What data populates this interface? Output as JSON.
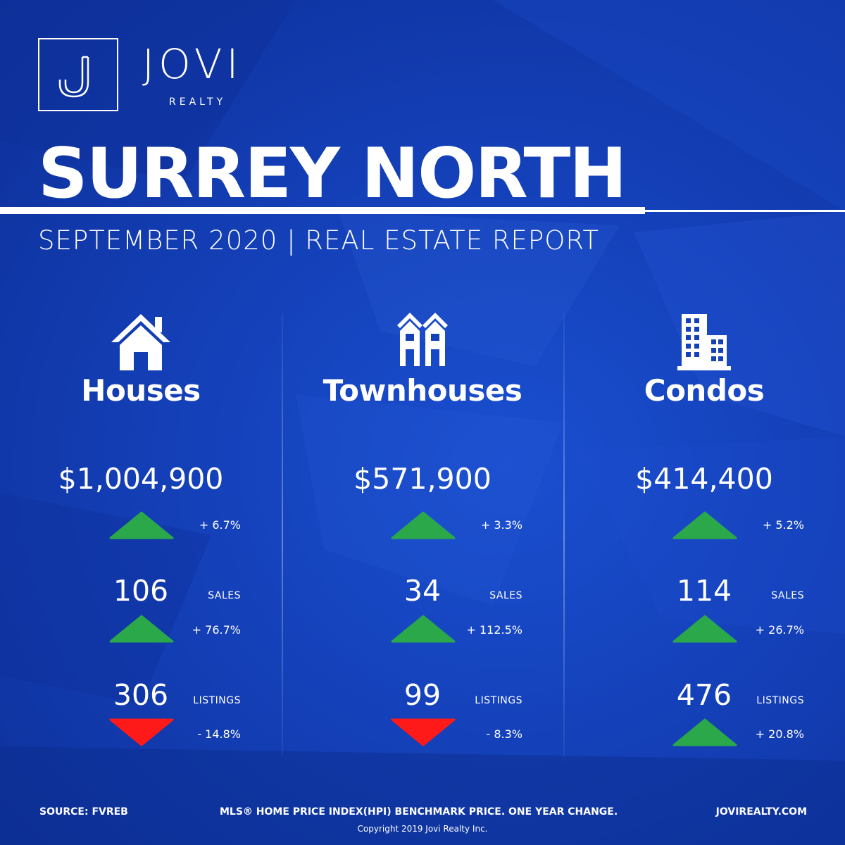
{
  "brand": {
    "name": "JOVI",
    "sub": "REALTY",
    "logo_letter": "J"
  },
  "title": "SURREY NORTH",
  "subtitle": "SEPTEMBER 2020 | REAL ESTATE REPORT",
  "colors": {
    "background": "#1440b8",
    "up": "#2aa84a",
    "down": "#ff1a1a",
    "text": "#ffffff"
  },
  "sales_label": "SALES",
  "listings_label": "LISTINGS",
  "columns": [
    {
      "icon": "house-icon",
      "category": "Houses",
      "price": "$1,004,900",
      "price_change": "+ 6.7%",
      "price_dir": "up",
      "sales": "106",
      "sales_change": "+ 76.7%",
      "sales_dir": "up",
      "listings": "306",
      "listings_change": "- 14.8%",
      "listings_dir": "down"
    },
    {
      "icon": "townhouse-icon",
      "category": "Townhouses",
      "price": "$571,900",
      "price_change": "+ 3.3%",
      "price_dir": "up",
      "sales": "34",
      "sales_change": "+ 112.5%",
      "sales_dir": "up",
      "listings": "99",
      "listings_change": "- 8.3%",
      "listings_dir": "down"
    },
    {
      "icon": "condo-building-icon",
      "category": "Condos",
      "price": "$414,400",
      "price_change": "+ 5.2%",
      "price_dir": "up",
      "sales": "114",
      "sales_change": "+ 26.7%",
      "sales_dir": "up",
      "listings": "476",
      "listings_change": "+ 20.8%",
      "listings_dir": "up"
    }
  ],
  "footer": {
    "source": "SOURCE:  FVREB",
    "note": "MLS® HOME PRICE INDEX(HPI) BENCHMARK PRICE. ONE YEAR CHANGE.",
    "website": "JOVIREALTY.COM",
    "copyright": "Copyright 2019 Jovi Realty Inc."
  }
}
